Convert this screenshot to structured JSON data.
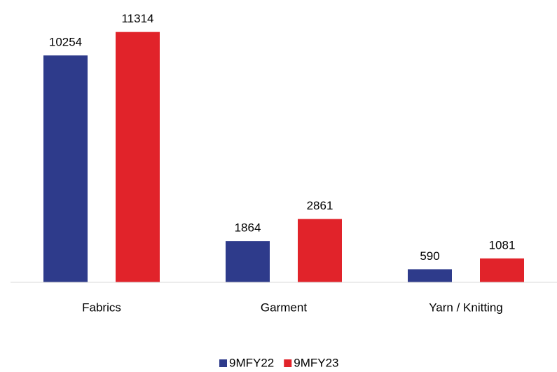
{
  "chart_data": {
    "type": "bar",
    "categories": [
      "Fabrics",
      "Garment",
      "Yarn / Knitting"
    ],
    "series": [
      {
        "name": "9MFY22",
        "color": "#2e3b8b",
        "values": [
          10254,
          1864,
          590
        ]
      },
      {
        "name": "9MFY23",
        "color": "#e1232a",
        "values": [
          11314,
          2861,
          1081
        ]
      }
    ],
    "ylim": [
      0,
      12000
    ]
  }
}
